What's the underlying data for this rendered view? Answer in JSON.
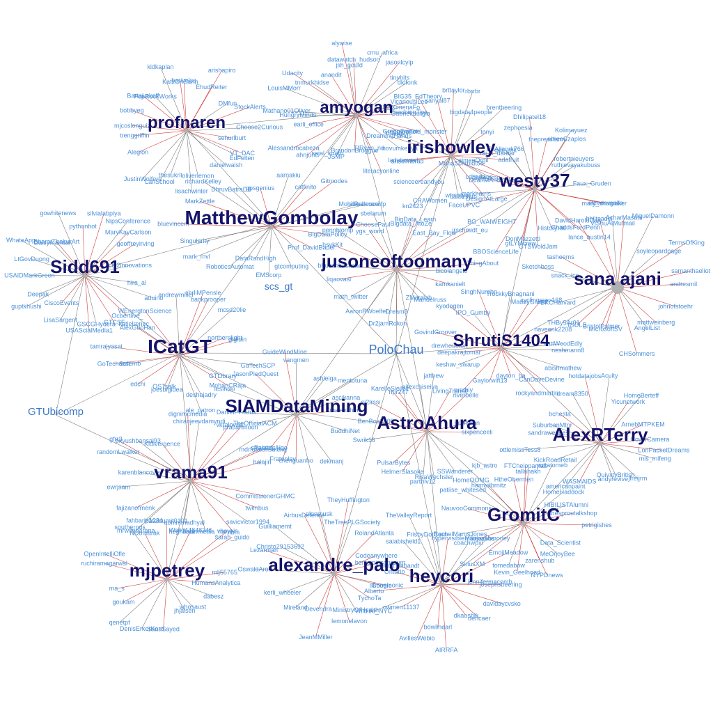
{
  "hubs": [
    {
      "id": "profnaren",
      "label": "profnaren"
    },
    {
      "id": "amyogan",
      "label": "amyogan"
    },
    {
      "id": "irishowley",
      "label": "irishowley"
    },
    {
      "id": "westy37",
      "label": "westy37"
    },
    {
      "id": "MatthewGombolay",
      "label": "MatthewGombolay"
    },
    {
      "id": "jusoneoftoomany",
      "label": "jusoneoftoomany"
    },
    {
      "id": "Sidd691",
      "label": "Sidd691"
    },
    {
      "id": "sanajani",
      "label": "sana ajani"
    },
    {
      "id": "ShrutiS1404",
      "label": "ShrutiS1404"
    },
    {
      "id": "ICatGT",
      "label": "ICatGT"
    },
    {
      "id": "SIAMDataMining",
      "label": "SIAMDataMining"
    },
    {
      "id": "AstroAhura",
      "label": "AstroAhura"
    },
    {
      "id": "AlexRTerry",
      "label": "AlexRTerry"
    },
    {
      "id": "vrama91",
      "label": "vrama91"
    },
    {
      "id": "GromitC",
      "label": "GromitC"
    },
    {
      "id": "mjpetrey",
      "label": "mjpetrey"
    },
    {
      "id": "alexandre_palo",
      "label": "alexandre_palo"
    },
    {
      "id": "heycori",
      "label": "heycori"
    }
  ],
  "mid_nodes": [
    {
      "id": "PoloChau",
      "label": "PoloChau"
    },
    {
      "id": "GTUbicomp",
      "label": "GTUbicomp"
    },
    {
      "id": "scs_gt",
      "label": "scs_gt"
    }
  ],
  "leaves": [
    {
      "hub": "profnaren",
      "labels": [
        "sehurlburt",
        "VT_DAC",
        "EdFelten",
        "danielwalsh",
        "oliverlemon",
        "lisachwinter",
        "thesukrit",
        "LanSchool",
        "JustinWolfers",
        "Alegion",
        "trenggriffin",
        "mjcoslonguiz",
        "bobbyeg",
        "BartaLakoff",
        "PopRockWorks",
        "kidkaplan",
        "KatzOnEarth",
        "barivelss",
        "EhudReiter",
        "arishapiro",
        "DMfun",
        "StockAlerts",
        "Choose2Curious"
      ]
    },
    {
      "hub": "amyogan",
      "labels": [
        "Gabrielmurgia",
        "humanoid_monster",
        "GreggTwitter",
        "novumkenya",
        "literacyonline",
        "TIRyan_nd",
        "BrandonBruggue",
        "JSMP",
        "sejal_khatri",
        "ahnjune",
        "Alessandrocabeza",
        "earli_office",
        "HungryMinds",
        "Mathano01Oliver",
        "LouisMMorr",
        "Udacity",
        "tnmurkhidse",
        "anandit",
        "alywise",
        "jsh_gould",
        "datawatch_hudson",
        "cmu_africa",
        "jasonlcyip",
        "tinybits",
        "dklfonk",
        "VicariouslLee",
        "MaXimenaFo"
      ]
    },
    {
      "hub": "irishowley",
      "labels": [
        "adafruit",
        "DeanMAnomalous",
        "diyiy_cmu",
        "DesignAtLarge",
        "dalbesatri",
        "whnotyet",
        "CRAWomen",
        "kn2423",
        "scienceereandyou",
        "anselmbrad",
        "ladatesnail",
        "DreamingHands",
        "Yifange",
        "TeachingTips",
        "BIG35_EdTheory",
        "sanyal87",
        "brttaylor",
        "rbrrbr",
        "bigdata4people",
        "brentheering",
        "tonyi",
        "raj_k_darbar"
      ]
    },
    {
      "hub": "westy37",
      "labels": [
        "stevenvgallo",
        "mary_shumaker",
        "ChaddsFordPenn",
        "lance_austin14",
        "HistoryHill",
        "GTSWoldJam",
        "DonMazzetti",
        "gtLYMcrew",
        "BBOScienceLife",
        "BG_WAIWEIGHT",
        "FaceUPVC",
        "markharris",
        "cdbattags",
        "MonaSchmidt58",
        "aimeeOrgil",
        "dep_mk",
        "EdAllenrk766",
        "zephoesia",
        "Dhilipatel18",
        "thepressfarm",
        "Kolimayuez",
        "shreeCzaplos",
        "robertnieuyers",
        "ruthievayakubuss",
        "Faux_Gruden"
      ]
    },
    {
      "hub": "MatthewGombolay",
      "labels": [
        "ChoosePaul",
        "BigDataPolicy",
        "Prof_DavidBader",
        "gtcomputing",
        "EMScorp",
        "DataRandHigh",
        "RoboticsAutomat",
        "mark_mvl",
        "Singularity",
        "bluevincent",
        "MarkZettle",
        "richardKelley",
        "DhruvBatraDB",
        "gpsgenius",
        "aarnakiu",
        "catfinito",
        "Gitmodes",
        "MohitRahmani",
        "alexalcocerfp"
      ]
    },
    {
      "hub": "jusoneoftoomany",
      "labels": [
        "bicolangelo",
        "kamkanielt",
        "Manuelruss",
        "ZMatalab",
        "Dream8",
        "Dr2jamRokon",
        "AaronRWoelfel",
        "math_twitter",
        "liqaovasi",
        "bhuvanbackend",
        "hsykKit",
        "pennbiomp",
        "ygs_worid",
        "sbelarum",
        "Bigdata_AtoZe",
        "BigData_Learn",
        "East_Bay_Flow",
        "jrschmidt_eu",
        "ThingAbout"
      ]
    },
    {
      "hub": "Sidd691",
      "labels": [
        "hira_al",
        "aduino",
        "Ocbertlive_",
        "GTCSE",
        "GSCGHydera",
        "USAScialMedia1",
        "LisaSargent",
        "CiscoEvents",
        "guptkhushi",
        "Deepak",
        "USAIDMarkGreen",
        "LtGovDuong",
        "WhateApp",
        "Daisymandal",
        "BharatThakurArt",
        "gowhitenews",
        "pythonbot",
        "silvialabpiya",
        "NipsConference",
        "MaryKayCarlson",
        "geoffreyirving",
        "chi2innovations"
      ]
    },
    {
      "hub": "sanajani",
      "labels": [
        "andresmil",
        "johnofstoehr",
        "mattweinberg",
        "AngelList",
        "CHSommers",
        "MicrosoftSV",
        "BristolPalmer",
        "ItsDLS",
        "THBy5Ar01",
        "BKCHarvard",
        "snack_ice",
        "Sketchboss",
        "tasheems",
        "DavidHaroldCarl",
        "bhiltsadel",
        "ViShuAtMufmail",
        "AcharMasani",
        "MiguelDamonn",
        "soyleonardpage",
        "TermsOfKing",
        "samanthaeliot"
      ]
    },
    {
      "hub": "ShrutiS1404",
      "labels": [
        "neshmann8",
        "abishmathew",
        "CanDaveDevine",
        "rockyandmartin",
        "dayton_ha",
        "Gaylorwift13",
        "prathiy",
        "keshav_swarup",
        "deepakrajtomar",
        "drewhouston",
        "GovindGroover",
        "kyodogen",
        "IPO_Gumby",
        "SinghNurohn",
        "TrockkyBhagnani",
        "MaddyGrand",
        "cyclingman168",
        "naveenk2208",
        "VattWoodEdly"
      ]
    },
    {
      "hub": "ICatGT",
      "labels": [
        "GaTechSCP",
        "GTLibrary",
        "MohanCRaja",
        "deshajadry",
        "ale_patron",
        "joesbigidea",
        "OSTsalk",
        "edchi",
        "assemb",
        "GoTechSoft",
        "tamrajyasai",
        "AlexGuoHan",
        "katielrenec",
        "WEnergtonScience",
        "andrewmiller",
        "chrliMPensle",
        "backprooper",
        "mcsd20lie",
        "northernlight",
        "glgluin"
      ]
    },
    {
      "hub": "SIAMDataMining",
      "labels": [
        "Xmatrixchen",
        "BuddhiNet",
        "dekmanj",
        "chenguanho",
        "Fratenley",
        "PalabstAlgo",
        "TheOfficialACM",
        "DanielPFratus",
        "lesinski",
        "JasonPiedQuest",
        "GuideWindMine",
        "vangmen",
        "ashleiga",
        "mentotuna",
        "ascikanna"
      ]
    },
    {
      "hub": "AstroAhura",
      "labels": [
        "sixpenceeli",
        "kjb_astro",
        "SSWanderer",
        "RisaWechsler",
        "parthiv12",
        "HelmerSlasoke",
        "PulsarBytes",
        "Swrik16",
        "BenBoo2000",
        "si2lrssi",
        "KarelleSiellez",
        "npr247",
        "aitexchiseiva",
        "jatthew",
        "LivingTransit",
        "riverbelle",
        "julielyllan"
      ]
    },
    {
      "hub": "AlexRTerry",
      "labels": [
        "LoriPacketDreams",
        "mis_mifeng",
        "jfreijrm",
        "QuivxtyBritish",
        "andyrevive",
        "WASMAIDS",
        "americanpaint",
        "KickRoadRetail",
        "ottlemissTess8",
        "sandrawendes",
        "SuburbanMtnr",
        "bchesta",
        "dream8350",
        "hotdatajobs",
        "Acuity",
        "Yicunetwork",
        "HomeBerteff",
        "ArnebMTPKEM",
        "CoverCamera"
      ]
    },
    {
      "hub": "vrama91",
      "labels": [
        "CommissionerGHMC",
        "twimbus",
        "savicvictor1994",
        "hbm",
        "kyanmedia_me",
        "heghbahi",
        "abhimmadhyal",
        "mrwimbarana",
        "fahbarin1234",
        "fajizanofmenk",
        "ewrjsam",
        "karenblancovey",
        "randomLwalker",
        "gfrr3",
        "pkyushbansal93",
        "Kldivergence",
        "dignimcmedia",
        "chiranjeevdamyndi",
        "vkralovna",
        "pratianmoon",
        "sfracedy",
        "mdrfoaconsulting",
        "balajin"
      ]
    },
    {
      "hub": "GromitC",
      "labels": [
        "petrigishes",
        "Data_Scientist",
        "MeOrjoyBee",
        "zarenshub",
        "NYPDnews",
        "Kevin_Geelhoed",
        "tomedabow",
        "SiriusXM",
        "mattjacobs",
        "RachelMarnsJones",
        "NauvooCommons",
        "patiise_whitesed",
        "HomeOOMG",
        "hamwilbrnitz",
        "HtheObermen",
        "FTChelopamas",
        "tallahakh",
        "yuttatomeb",
        "HomeHaddock",
        "HIBILISTAlumni",
        "thesproutalkshop"
      ]
    },
    {
      "hub": "mjpetrey",
      "labels": [
        "HumansAnalytica",
        "dabesz",
        "whosaust",
        "jhjalsen",
        "SanaSayed",
        "DenisErkerKern",
        "qenetpf",
        "goukam",
        "ma_s",
        "ruchiramagarwal",
        "OpenIntelliOfle",
        "southernds",
        "NDomarak",
        "patelsumit0101",
        "Walid44848345",
        "vboykis",
        "sarah_guido",
        "mlj55765"
      ]
    },
    {
      "hub": "alexandre_palo",
      "labels": [
        "sfmnemonic",
        "Google",
        "TychoTa",
        "MinistryOfHealth",
        "lemonelavon",
        "JeanMMiller",
        "Devendra",
        "Mireland",
        "kerli_wheeler",
        "OswaldAron",
        "Lezarman",
        "Christo29153692",
        "Guilliamemt",
        "AirbusDefence",
        "elonmusk",
        "TheyHuffington",
        "TheTreePLGSociety",
        "RolandAtlanta",
        "Codeanywhere",
        "benjaminsanssum"
      ]
    },
    {
      "hub": "heycori",
      "labels": [
        "josephsbeering",
        "davidaycvsko",
        "dencaer",
        "dkaushik",
        "AIRRFA",
        "bowlinearl",
        "AvillesWebio",
        "owmen11137",
        "Wildlife_NYC",
        "Alberto",
        "Ontario",
        "ScottTrabandt",
        "saiabisheld1",
        "TheValleyReport",
        "FrisbyDotCom",
        "hypervisible",
        "coachwpxi",
        "Mikecashmoney",
        "EmojiMeadow",
        "jennifermacomb"
      ]
    }
  ]
}
